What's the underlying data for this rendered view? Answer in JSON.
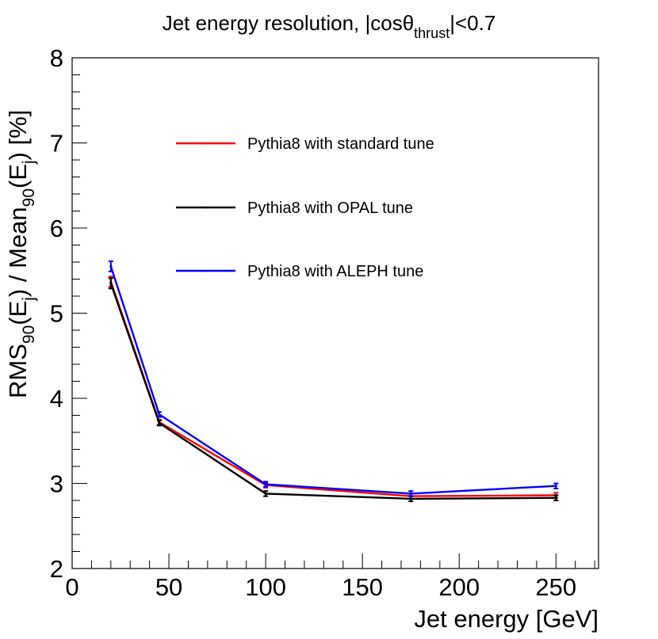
{
  "chart_data": {
    "type": "line",
    "title": {
      "main": "Jet energy resolution, |cosθ",
      "sub": "thrust",
      "tail": "|<0.7"
    },
    "xlabel": "Jet energy [GeV]",
    "ylabel": {
      "p1": "RMS",
      "s1": "90",
      "p2": "(E",
      "s2": "j",
      "p3": ") / Mean",
      "s3": "90",
      "p4": "(E",
      "s4": "j",
      "p5": ") [%]"
    },
    "xlim": [
      0,
      272
    ],
    "ylim": [
      2,
      8
    ],
    "x_major_ticks": [
      0,
      50,
      100,
      150,
      200,
      250
    ],
    "y_major_ticks": [
      2,
      3,
      4,
      5,
      6,
      7,
      8
    ],
    "x_ticks_text": [
      "0",
      "50",
      "100",
      "150",
      "200",
      "250"
    ],
    "y_ticks_text": [
      "2",
      "3",
      "4",
      "5",
      "6",
      "7",
      "8"
    ],
    "legend_position": "upper-center",
    "series": [
      {
        "name": "Pythia8 with standard tune",
        "color": "#ff0000",
        "x": [
          20,
          45,
          100,
          175,
          250
        ],
        "y": [
          5.37,
          3.72,
          2.98,
          2.85,
          2.86
        ],
        "err": [
          0.06,
          0.03,
          0.03,
          0.03,
          0.03
        ]
      },
      {
        "name": "Pythia8 with OPAL tune",
        "color": "#000000",
        "x": [
          20,
          45,
          100,
          175,
          250
        ],
        "y": [
          5.35,
          3.71,
          2.88,
          2.82,
          2.83
        ],
        "err": [
          0.06,
          0.03,
          0.03,
          0.03,
          0.03
        ]
      },
      {
        "name": "Pythia8 with ALEPH tune",
        "color": "#0000ff",
        "x": [
          20,
          45,
          100,
          175,
          250
        ],
        "y": [
          5.55,
          3.81,
          2.99,
          2.88,
          2.97
        ],
        "err": [
          0.06,
          0.03,
          0.03,
          0.03,
          0.03
        ]
      }
    ]
  }
}
